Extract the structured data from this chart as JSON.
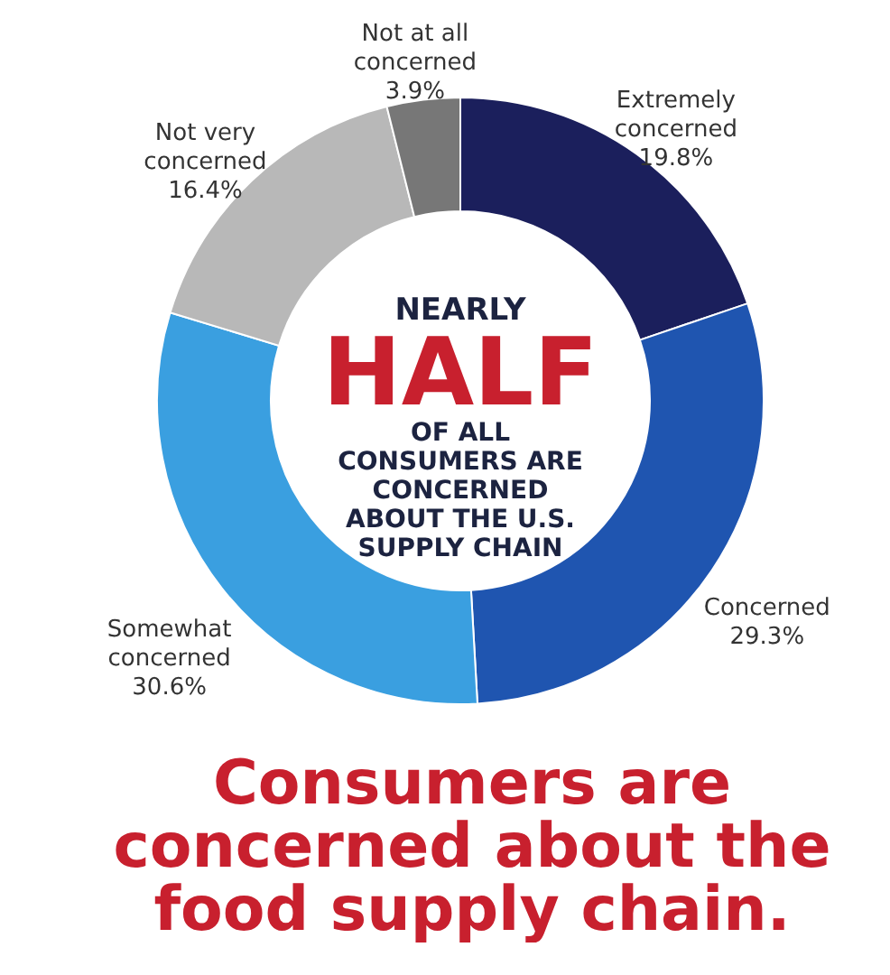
{
  "chart_data": {
    "type": "donut",
    "title": "Consumers are concerned about the food supply chain.",
    "categories": [
      "Extremely concerned",
      "Concerned",
      "Somewhat concerned",
      "Not very concerned",
      "Not at all concerned"
    ],
    "values": [
      19.8,
      29.3,
      30.6,
      16.4,
      3.9
    ],
    "colors": [
      "#1b1f5c",
      "#1f55b0",
      "#3a9fe0",
      "#b8b8b8",
      "#777777"
    ],
    "value_labels": [
      "19.8%",
      "29.3%",
      "30.6%",
      "16.4%",
      "3.9%"
    ],
    "annotations": [
      "NEARLY",
      "HALF",
      "OF ALL CONSUMERS ARE CONCERNED ABOUT THE U.S. SUPPLY CHAIN"
    ],
    "legend": false
  }
}
